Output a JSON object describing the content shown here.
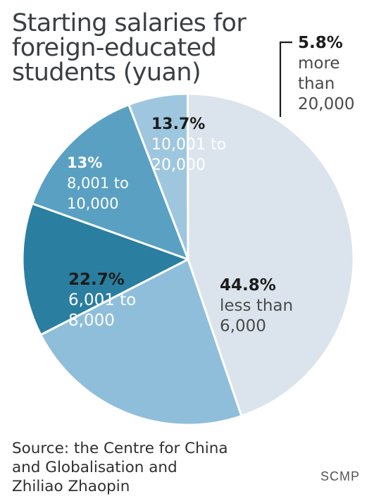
{
  "title": [
    "Starting salaries for",
    "foreign-educated",
    "students (yuan)"
  ],
  "chart_data": {
    "type": "pie",
    "title": "Starting salaries for foreign-educated students (yuan)",
    "slices": [
      {
        "value": 5.8,
        "pct_label": "5.8%",
        "label": [
          "more",
          "than",
          "20,000"
        ],
        "color": "#9ec6df"
      },
      {
        "value": 44.8,
        "pct_label": "44.8%",
        "label": [
          "less than",
          "6,000"
        ],
        "color": "#dbe4ec"
      },
      {
        "value": 22.7,
        "pct_label": "22.7%",
        "label": [
          "6,001 to",
          "8,000"
        ],
        "color": "#8fbedb"
      },
      {
        "value": 13,
        "pct_label": "13%",
        "label": [
          "8,001 to",
          "10,000"
        ],
        "color": "#2a7e9f"
      },
      {
        "value": 13.7,
        "pct_label": "13.7%",
        "label": [
          "10,001 to",
          "20,000"
        ],
        "color": "#5aa0c2"
      }
    ],
    "source": [
      "Source: the Centre for China",
      "and Globalisation and",
      "Zhiliao Zhaopin"
    ]
  },
  "brand": "SCMP"
}
